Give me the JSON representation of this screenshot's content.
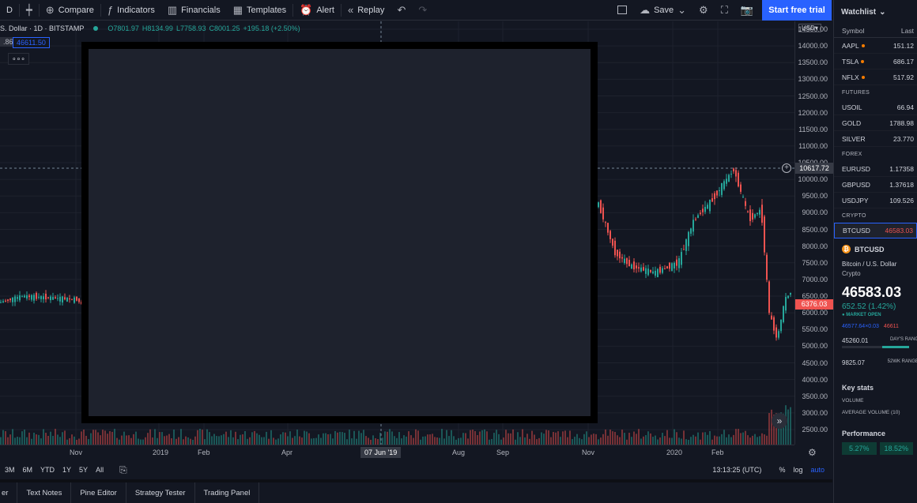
{
  "toolbar": {
    "interval": "D",
    "compare": "Compare",
    "indicators": "Indicators",
    "financials": "Financials",
    "templates": "Templates",
    "alert": "Alert",
    "replay": "Replay",
    "save": "Save",
    "start_trial": "Start free trial"
  },
  "legend": {
    "title": "S. Dollar · 1D · BITSTAMP",
    "open": "O7801.97",
    "high": "H8134.99",
    "low": "L7758.93",
    "close": "C8001.25",
    "change": "+195.18 (+2.50%)",
    "price_left": ".86",
    "price_right": "46611.50",
    "more": "∘∘∘"
  },
  "price_axis": {
    "currency": "USD",
    "ticks": [
      "14500.00",
      "14000.00",
      "13500.00",
      "13000.00",
      "12500.00",
      "12000.00",
      "11500.00",
      "11000.00",
      "10500.00",
      "10000.00",
      "9500.00",
      "9000.00",
      "8500.00",
      "8000.00",
      "7500.00",
      "7000.00",
      "6500.00",
      "6000.00",
      "5500.00",
      "5000.00",
      "4500.00",
      "4000.00",
      "3500.00",
      "3000.00",
      "2500.00"
    ],
    "crosshair_label": "10617.72",
    "last_price_label": "6376.03"
  },
  "time_axis": {
    "ticks": [
      "Nov",
      "2019",
      "Feb",
      "Apr",
      "Aug",
      "Sep",
      "Nov",
      "2020",
      "Feb"
    ],
    "crosshair_label": "07 Jun '19"
  },
  "bottom_bar": {
    "ranges": [
      "3M",
      "6M",
      "YTD",
      "1Y",
      "5Y",
      "All"
    ],
    "clock": "13:13:25 (UTC)",
    "percent": "%",
    "log": "log",
    "auto": "auto"
  },
  "tabs": [
    "er",
    "Text Notes",
    "Pine Editor",
    "Strategy Tester",
    "Trading Panel"
  ],
  "watchlist": {
    "title": "Watchlist",
    "col_symbol": "Symbol",
    "col_last": "Last",
    "items": [
      {
        "symbol": "AAPL",
        "last": "151.12",
        "dot": true
      },
      {
        "symbol": "TSLA",
        "last": "686.17",
        "dot": true
      },
      {
        "symbol": "NFLX",
        "last": "517.92",
        "dot": true
      }
    ],
    "sections": [
      {
        "title": "FUTURES",
        "items": [
          {
            "symbol": "USOIL",
            "last": "66.94"
          },
          {
            "symbol": "GOLD",
            "last": "1788.98"
          },
          {
            "symbol": "SILVER",
            "last": "23.770"
          }
        ]
      },
      {
        "title": "FOREX",
        "items": [
          {
            "symbol": "EURUSD",
            "last": "1.17358"
          },
          {
            "symbol": "GBPUSD",
            "last": "1.37618"
          },
          {
            "symbol": "USDJPY",
            "last": "109.526"
          }
        ]
      },
      {
        "title": "CRYPTO",
        "items": [
          {
            "symbol": "BTCUSD",
            "last": "46583.03"
          }
        ]
      }
    ]
  },
  "details": {
    "symbol": "BTCUSD",
    "name": "Bitcoin / U.S. Dollar",
    "type": "Crypto",
    "price": "46583.03",
    "change": "652.52 (1.42%)",
    "market_status": "MARKET OPEN",
    "bid": "46577.64",
    "bid_size": "0.03",
    "ask": "46611",
    "day_low": "45260.01",
    "day_range_label": "DAY'S RANG",
    "wk_low": "9825.07",
    "wk_range_label": "52WK RANGE",
    "key_stats": "Key stats",
    "volume_label": "VOLUME",
    "avg_volume_label": "AVERAGE VOLUME (10)",
    "performance": "Performance",
    "perf_values": [
      "5.27%",
      "18.52%"
    ]
  },
  "colors": {
    "up": "#26a69a",
    "down": "#ef5350",
    "accent": "#2962ff",
    "bg": "#131722"
  }
}
